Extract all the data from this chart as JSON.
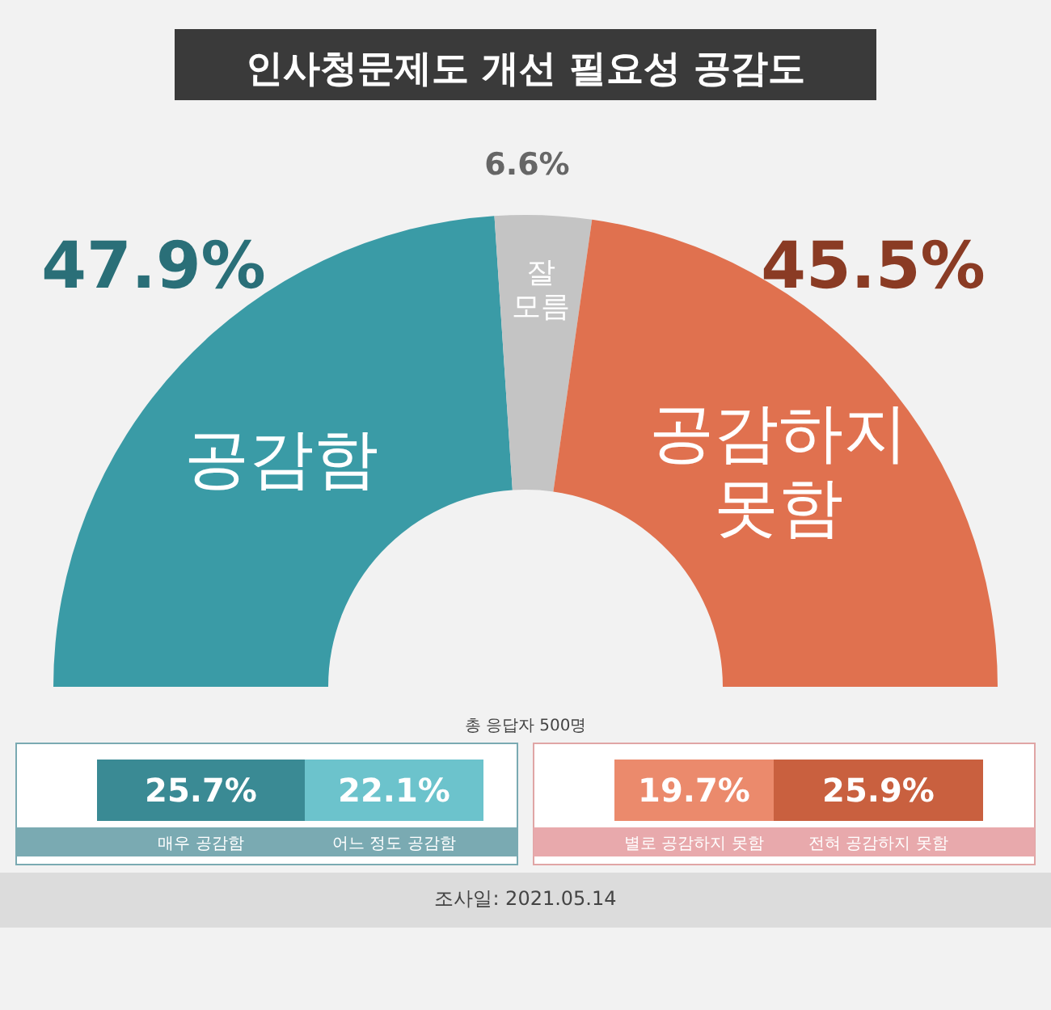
{
  "chart_data": [
    {
      "type": "donut",
      "title": "인사청문제도 개선 필요성 공감도",
      "categories": [
        "공감함",
        "잘 모름",
        "공감하지 못함"
      ],
      "values": [
        47.9,
        6.6,
        45.5
      ],
      "colors": [
        "#3a9ba6",
        "#c4c4c4",
        "#e0714f"
      ],
      "value_labels": [
        "47.9%",
        "6.6%",
        "45.5%"
      ],
      "annotations": [
        "총 응답자 500명",
        "조사일: 2021.05.14"
      ]
    },
    {
      "type": "bar",
      "orientation": "horizontal",
      "stacked": true,
      "categories": [
        null
      ],
      "series": [
        {
          "name": "매우 공감함",
          "color": "#3a8a94",
          "values": [
            25.7
          ],
          "value_labels": [
            "25.7%"
          ]
        },
        {
          "name": "어느 정도 공감함",
          "color": "#6cc3cc",
          "values": [
            22.1
          ],
          "value_labels": [
            "22.1%"
          ]
        }
      ]
    },
    {
      "type": "bar",
      "orientation": "horizontal",
      "stacked": true,
      "categories": [
        null
      ],
      "series": [
        {
          "name": "별로 공감하지 못함",
          "color": "#eb8a6c",
          "values": [
            19.7
          ],
          "value_labels": [
            "19.7%"
          ]
        },
        {
          "name": "전혀 공감하지 못함",
          "color": "#c9603f",
          "values": [
            25.9
          ],
          "value_labels": [
            "25.9%"
          ]
        }
      ]
    }
  ]
}
